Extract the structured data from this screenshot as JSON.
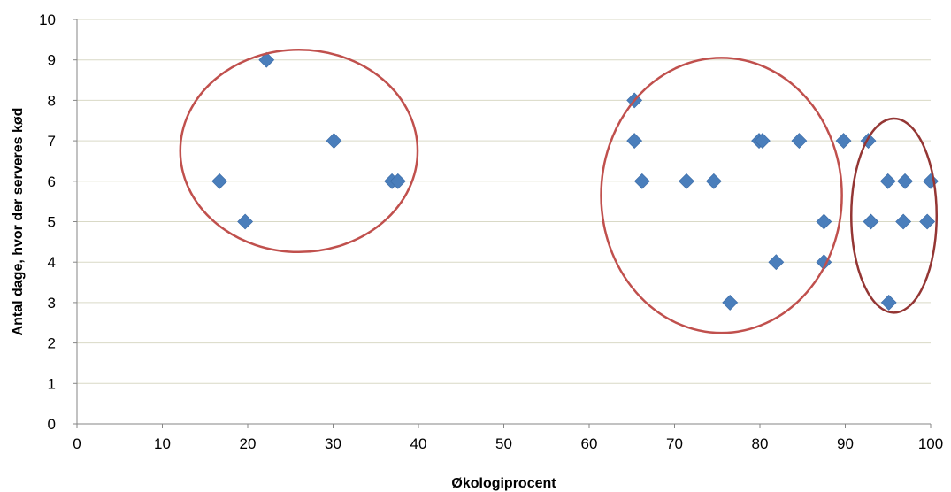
{
  "chart_data": {
    "type": "scatter",
    "title": "",
    "xlabel": "Økologiprocent",
    "ylabel": "Antal dage, hvor der serveres kød",
    "xlim": [
      0,
      100
    ],
    "ylim": [
      0,
      10
    ],
    "x_ticks": [
      0,
      10,
      20,
      30,
      40,
      50,
      60,
      70,
      80,
      90,
      100
    ],
    "y_ticks": [
      0,
      1,
      2,
      3,
      4,
      5,
      6,
      7,
      8,
      9,
      10
    ],
    "grid": "horizontal",
    "legend": "none",
    "marker": "diamond",
    "series": [
      {
        "color": "#4a7ebb",
        "points": [
          {
            "x": 16.7,
            "y": 6
          },
          {
            "x": 19.7,
            "y": 5
          },
          {
            "x": 22.2,
            "y": 9
          },
          {
            "x": 30.1,
            "y": 7
          },
          {
            "x": 36.9,
            "y": 6
          },
          {
            "x": 37.6,
            "y": 6
          },
          {
            "x": 65.3,
            "y": 8
          },
          {
            "x": 65.3,
            "y": 7
          },
          {
            "x": 66.2,
            "y": 6
          },
          {
            "x": 71.4,
            "y": 6
          },
          {
            "x": 74.6,
            "y": 6
          },
          {
            "x": 76.5,
            "y": 3
          },
          {
            "x": 79.9,
            "y": 7
          },
          {
            "x": 80.3,
            "y": 7
          },
          {
            "x": 81.9,
            "y": 4
          },
          {
            "x": 84.6,
            "y": 7
          },
          {
            "x": 87.5,
            "y": 5
          },
          {
            "x": 87.5,
            "y": 4
          },
          {
            "x": 89.8,
            "y": 7
          },
          {
            "x": 92.7,
            "y": 7
          },
          {
            "x": 93.0,
            "y": 5
          },
          {
            "x": 95.0,
            "y": 6
          },
          {
            "x": 95.1,
            "y": 3
          },
          {
            "x": 96.8,
            "y": 5
          },
          {
            "x": 97.0,
            "y": 6
          },
          {
            "x": 99.6,
            "y": 5
          },
          {
            "x": 100,
            "y": 6
          }
        ]
      }
    ],
    "annotations": [
      {
        "shape": "ellipse",
        "cx": 26,
        "cy": 6.75,
        "rx": 13.9,
        "ry": 2.5,
        "color": "#c0504d"
      },
      {
        "shape": "ellipse",
        "cx": 75.5,
        "cy": 5.65,
        "rx": 14.1,
        "ry": 3.4,
        "color": "#c0504d"
      },
      {
        "shape": "ellipse",
        "cx": 95.7,
        "cy": 5.15,
        "rx": 5.0,
        "ry": 2.4,
        "color": "#943634"
      }
    ],
    "colors": {
      "grid": "#d9d9c6",
      "axis": "#868686"
    }
  }
}
